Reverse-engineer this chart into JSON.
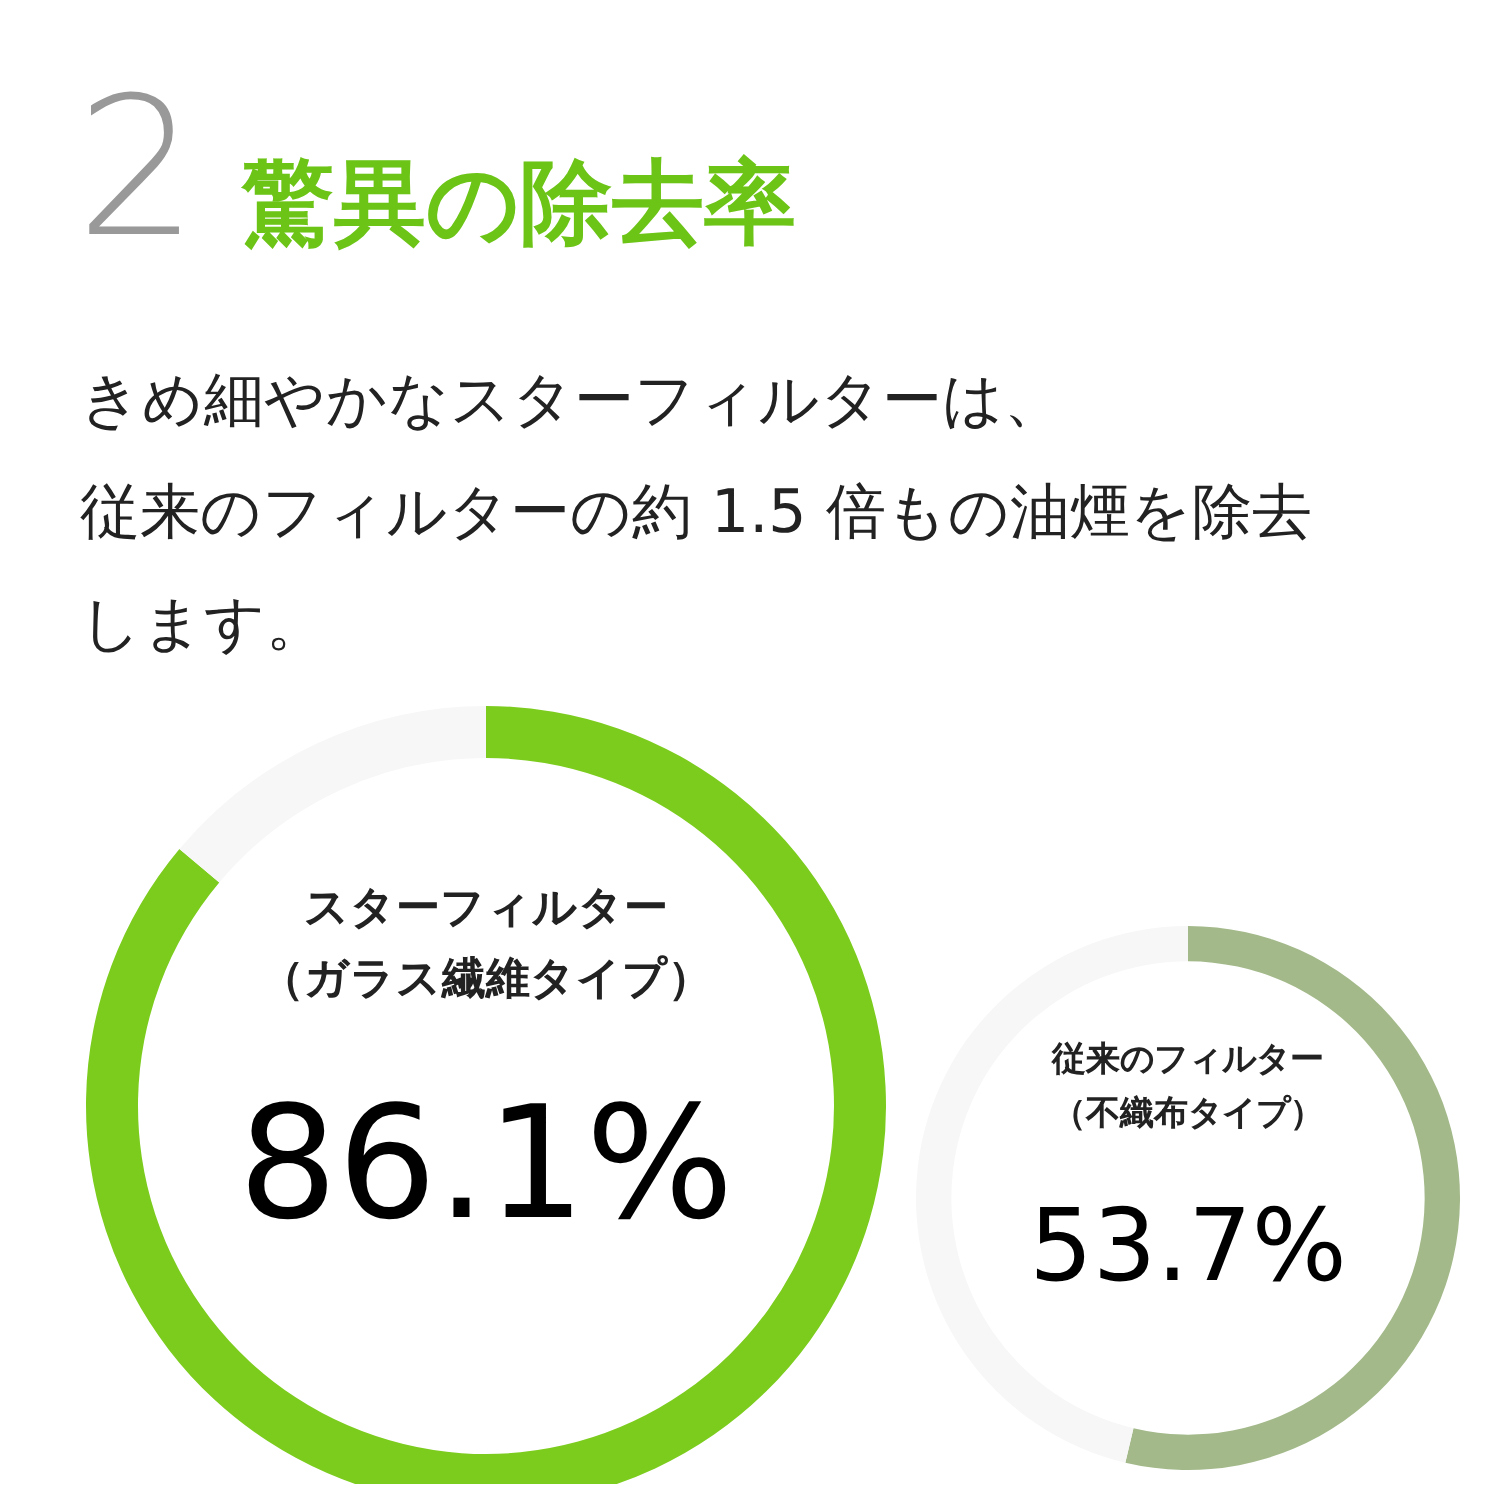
{
  "chart_data": [
    {
      "type": "donut",
      "title": "2 驚異の除去率",
      "subtitle": "きめ細やかなスターフィルターは、",
      "annotations": [
        "従来のフィルターの約 1.5 倍もの油煙を除去します。"
      ],
      "categories": [
        "スターフィルター（ガラス繊維タイプ）",
        null
      ],
      "values": [
        86.1,
        13.9
      ],
      "colors": [
        "#7ccc1e",
        "#f7f7f7"
      ],
      "value_labels": [
        "86.1%",
        null
      ],
      "legend": false
    },
    {
      "type": "donut",
      "categories": [
        "従来のフィルター（不織布タイプ）",
        null
      ],
      "values": [
        53.7,
        46.3
      ],
      "colors": [
        "#a3b98a",
        "#f7f7f7"
      ],
      "value_labels": [
        "53.7%",
        null
      ],
      "legend": false
    }
  ]
}
